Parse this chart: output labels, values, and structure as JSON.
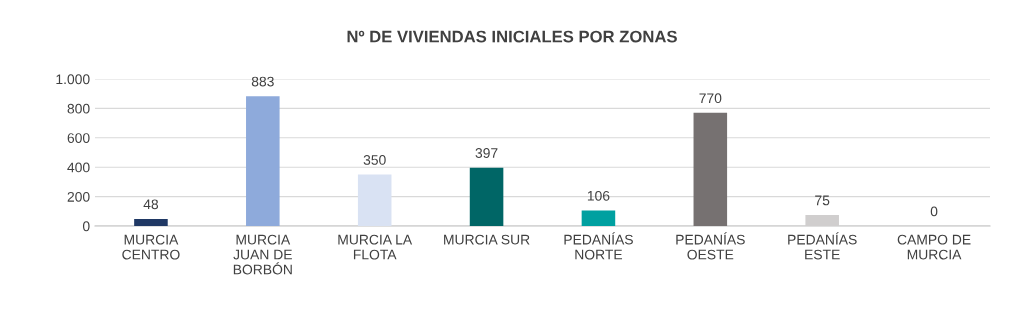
{
  "chart_data": {
    "type": "bar",
    "title": "Nº DE VIVIENDAS INICIALES POR ZONAS",
    "categories": [
      "MURCIA\nCENTRO",
      "MURCIA\nJUAN DE\nBORBÓN",
      "MURCIA LA\nFLOTA",
      "MURCIA SUR",
      "PEDANÍAS\nNORTE",
      "PEDANÍAS\nOESTE",
      "PEDANÍAS\nESTE",
      "CAMPO DE\nMURCIA"
    ],
    "values": [
      48,
      883,
      350,
      397,
      106,
      770,
      75,
      0
    ],
    "colors": [
      "#1f3864",
      "#8eaadb",
      "#d9e2f3",
      "#006666",
      "#00a0a0",
      "#767171",
      "#d0cece",
      "#a5a5a5"
    ],
    "ylim": [
      0,
      1000
    ],
    "yticks": [
      0,
      200,
      400,
      600,
      800,
      {
        "value": 1000,
        "label": "1.000"
      }
    ],
    "grid": "y",
    "data_labels": true
  }
}
